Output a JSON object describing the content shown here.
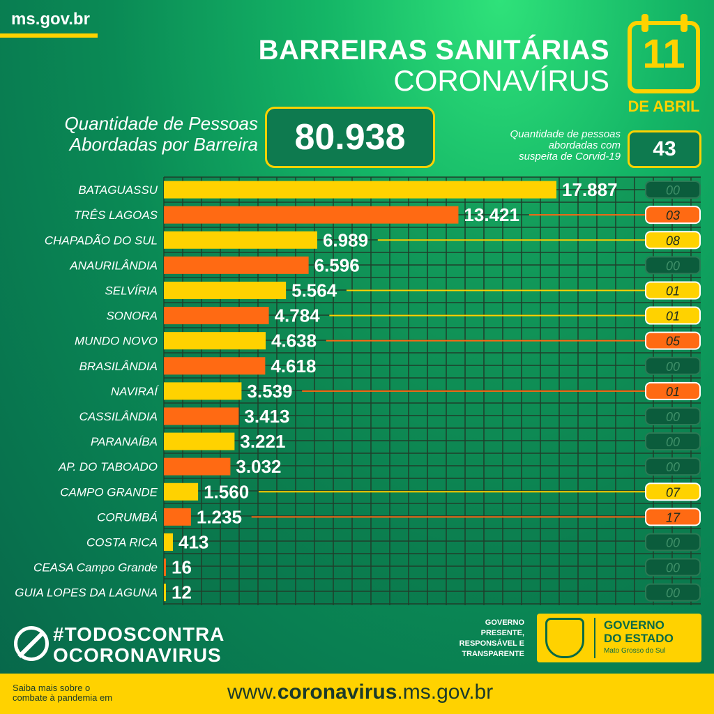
{
  "header": {
    "site": "ms.gov.br",
    "title_line1": "BARREIRAS SANITÁRIAS",
    "title_line2": "CORONAVÍRUS",
    "date_day": "11",
    "date_month": "DE ABRIL",
    "calendar_icon": "calendar-icon"
  },
  "summary": {
    "label_line1": "Quantidade de Pessoas",
    "label_line2": "Abordadas por Barreira",
    "total": "80.938",
    "suspects_label_line1": "Quantidade de pessoas",
    "suspects_label_line2": "abordadas com",
    "suspects_label_line3": "suspeita de Corvid-19",
    "suspects_total": "43"
  },
  "colors": {
    "yellow": "#ffd200",
    "orange": "#ff6a13",
    "dark_green": "#0b5c3c",
    "grid": "#1f3f2b"
  },
  "chart_data": {
    "type": "bar",
    "orientation": "horizontal",
    "categories": [
      "BATAGUASSU",
      "TRÊS LAGOAS",
      "CHAPADÃO DO SUL",
      "ANAURILÂNDIA",
      "SELVÍRIA",
      "SONORA",
      "MUNDO NOVO",
      "BRASILÂNDIA",
      "NAVIRAÍ",
      "CASSILÂNDIA",
      "PARANAÍBA",
      "AP. DO TABOADO",
      "CAMPO GRANDE",
      "CORUMBÁ",
      "COSTA RICA",
      "CEASA Campo Grande",
      "GUIA LOPES DA LAGUNA"
    ],
    "values": [
      17887,
      13421,
      6989,
      6596,
      5564,
      4784,
      4638,
      4618,
      3539,
      3413,
      3221,
      3032,
      1560,
      1235,
      413,
      16,
      12
    ],
    "value_labels": [
      "17.887",
      "13.421",
      "6.989",
      "6.596",
      "5.564",
      "4.784",
      "4.638",
      "4.618",
      "3.539",
      "3.413",
      "3.221",
      "3.032",
      "1.560",
      "1.235",
      "413",
      "16",
      "12"
    ],
    "bar_colors": [
      "yellow",
      "orange",
      "yellow",
      "orange",
      "yellow",
      "orange",
      "yellow",
      "orange",
      "yellow",
      "orange",
      "yellow",
      "orange",
      "yellow",
      "orange",
      "yellow",
      "orange",
      "yellow"
    ],
    "suspects": [
      "00",
      "03",
      "08",
      "00",
      "01",
      "01",
      "05",
      "00",
      "01",
      "00",
      "00",
      "00",
      "07",
      "17",
      "00",
      "00",
      "00"
    ],
    "suspect_colors": [
      "dark",
      "orange",
      "yellow",
      "dark",
      "yellow",
      "yellow",
      "orange",
      "dark",
      "orange",
      "dark",
      "dark",
      "dark",
      "yellow",
      "orange",
      "dark",
      "dark",
      "dark"
    ],
    "xlim": [
      0,
      17887
    ],
    "grid": true
  },
  "footer": {
    "hashtag_line1": "#TODOSCONTRA",
    "hashtag_line2": "OCORONAVIRUS",
    "ban_icon": "virus-ban-icon",
    "gov_text_line1": "GOVERNO",
    "gov_text_line2": "PRESENTE,",
    "gov_text_line3": "RESPONSÁVEL E",
    "gov_text_line4": "TRANSPARENTE",
    "gov_title_line1": "GOVERNO",
    "gov_title_line2": "DO ESTADO",
    "gov_sub": "Mato Grosso do Sul",
    "crest_icon": "state-crest-icon",
    "info_line1": "Saiba mais sobre o",
    "info_line2": "combate à pandemia em",
    "url_prefix": "www.",
    "url_bold": "coronavirus",
    "url_suffix": ".ms.gov.br"
  }
}
